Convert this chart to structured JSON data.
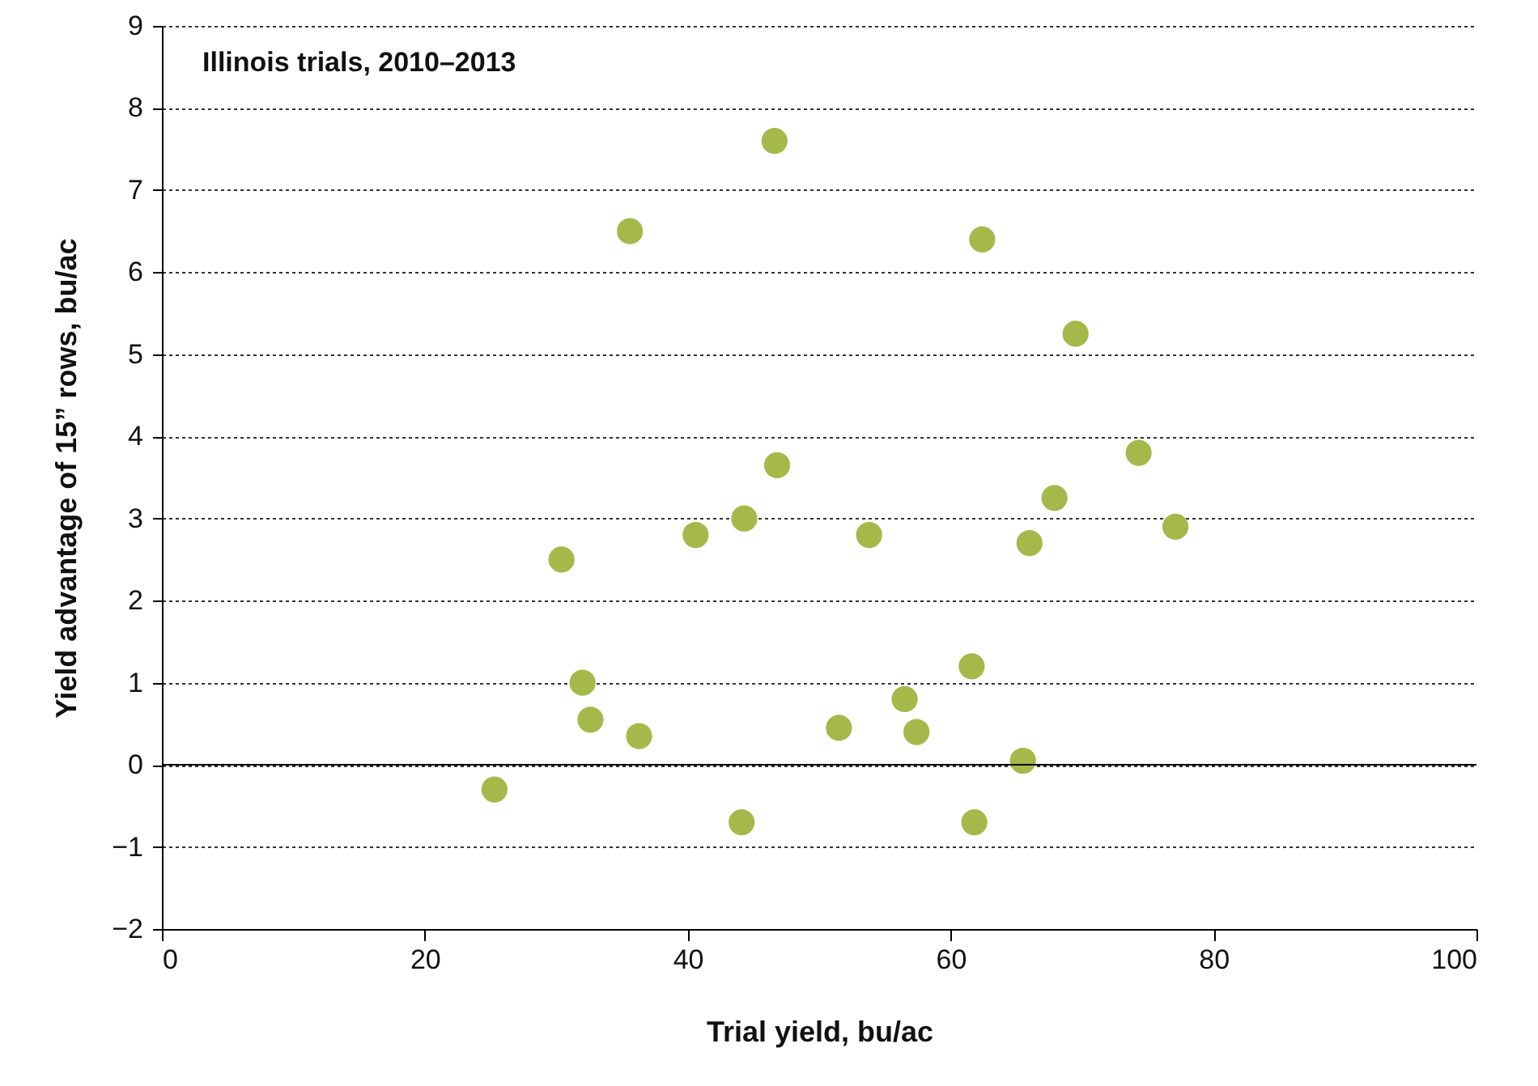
{
  "chart_data": {
    "type": "scatter",
    "title": "Illinois trials, 2010–2013",
    "xlabel": "Trial yield, bu/ac",
    "ylabel": "Yield advantage of 15” rows, bu/ac",
    "x": [
      25.3,
      30.4,
      32.0,
      32.6,
      35.6,
      36.3,
      40.6,
      44.1,
      44.3,
      46.6,
      46.8,
      51.5,
      53.8,
      56.5,
      57.4,
      61.6,
      61.8,
      62.4,
      65.5,
      66.0,
      67.9,
      69.5,
      74.3,
      77.1
    ],
    "series": [
      {
        "color": "#a4b94a",
        "values": [
          -0.3,
          2.5,
          1.0,
          0.55,
          6.5,
          0.35,
          2.8,
          -0.7,
          3.0,
          7.6,
          3.65,
          0.45,
          2.8,
          0.8,
          0.4,
          1.2,
          -0.7,
          6.4,
          0.05,
          2.7,
          3.25,
          5.25,
          3.8,
          2.9
        ]
      }
    ],
    "xlim": [
      0,
      100
    ],
    "xticks": [
      0,
      20,
      40,
      60,
      80,
      100
    ],
    "ylim": [
      -2,
      9
    ],
    "yticks": [
      {
        "value": -2,
        "label": "−2"
      },
      {
        "value": -1,
        "label": "−1"
      },
      0,
      1,
      2,
      3,
      4,
      5,
      6,
      7,
      8,
      9
    ],
    "grid": "y",
    "marker": "circle",
    "ref_lines": [
      {
        "axis": "y",
        "value": 0,
        "color": "#000000"
      }
    ]
  }
}
